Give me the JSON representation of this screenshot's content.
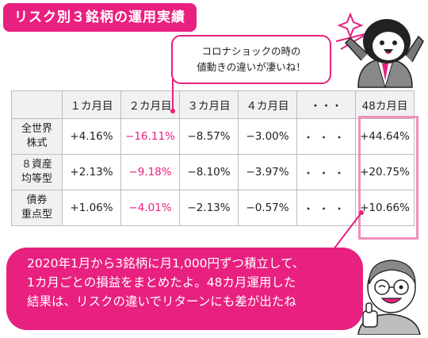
{
  "title": "リスク別３銘柄の運用実績",
  "speech_top": {
    "line1": "コロナショックの時の",
    "line2": "値動きの違いが凄いね！"
  },
  "table": {
    "headers": [
      "",
      "１カ月目",
      "２カ月目",
      "３カ月目",
      "４カ月目",
      "・・・",
      "48カ月目"
    ],
    "rows": [
      {
        "label1": "全世界",
        "label2": "株式",
        "cells": [
          "+4.16%",
          "−16.11%",
          "−8.57%",
          "−3.00%",
          "・・・",
          "+44.64%"
        ]
      },
      {
        "label1": "８資産",
        "label2": "均等型",
        "cells": [
          "+2.13%",
          "−9.18%",
          "−8.10%",
          "−3.97%",
          "・・・",
          "+20.75%"
        ]
      },
      {
        "label1": "債券",
        "label2": "重点型",
        "cells": [
          "+1.06%",
          "−4.01%",
          "−2.13%",
          "−0.57%",
          "・・・",
          "+10.66%"
        ]
      }
    ],
    "negative_highlight_column": 1
  },
  "speech_bottom": {
    "line1": "2020年1月から3銘柄に月1,000円ずつ積立して、",
    "line2": "1カ月ごとの損益をまとめたよ。48カ月運用した",
    "line3": "結果は、リスクの違いでリターンにも差が出たね"
  },
  "colors": {
    "accent": "#e8207f",
    "highlight_border": "#f08fbc",
    "header_bg": "#f1f1f1"
  },
  "icons": [
    "penguin-character",
    "grandpa-character"
  ]
}
